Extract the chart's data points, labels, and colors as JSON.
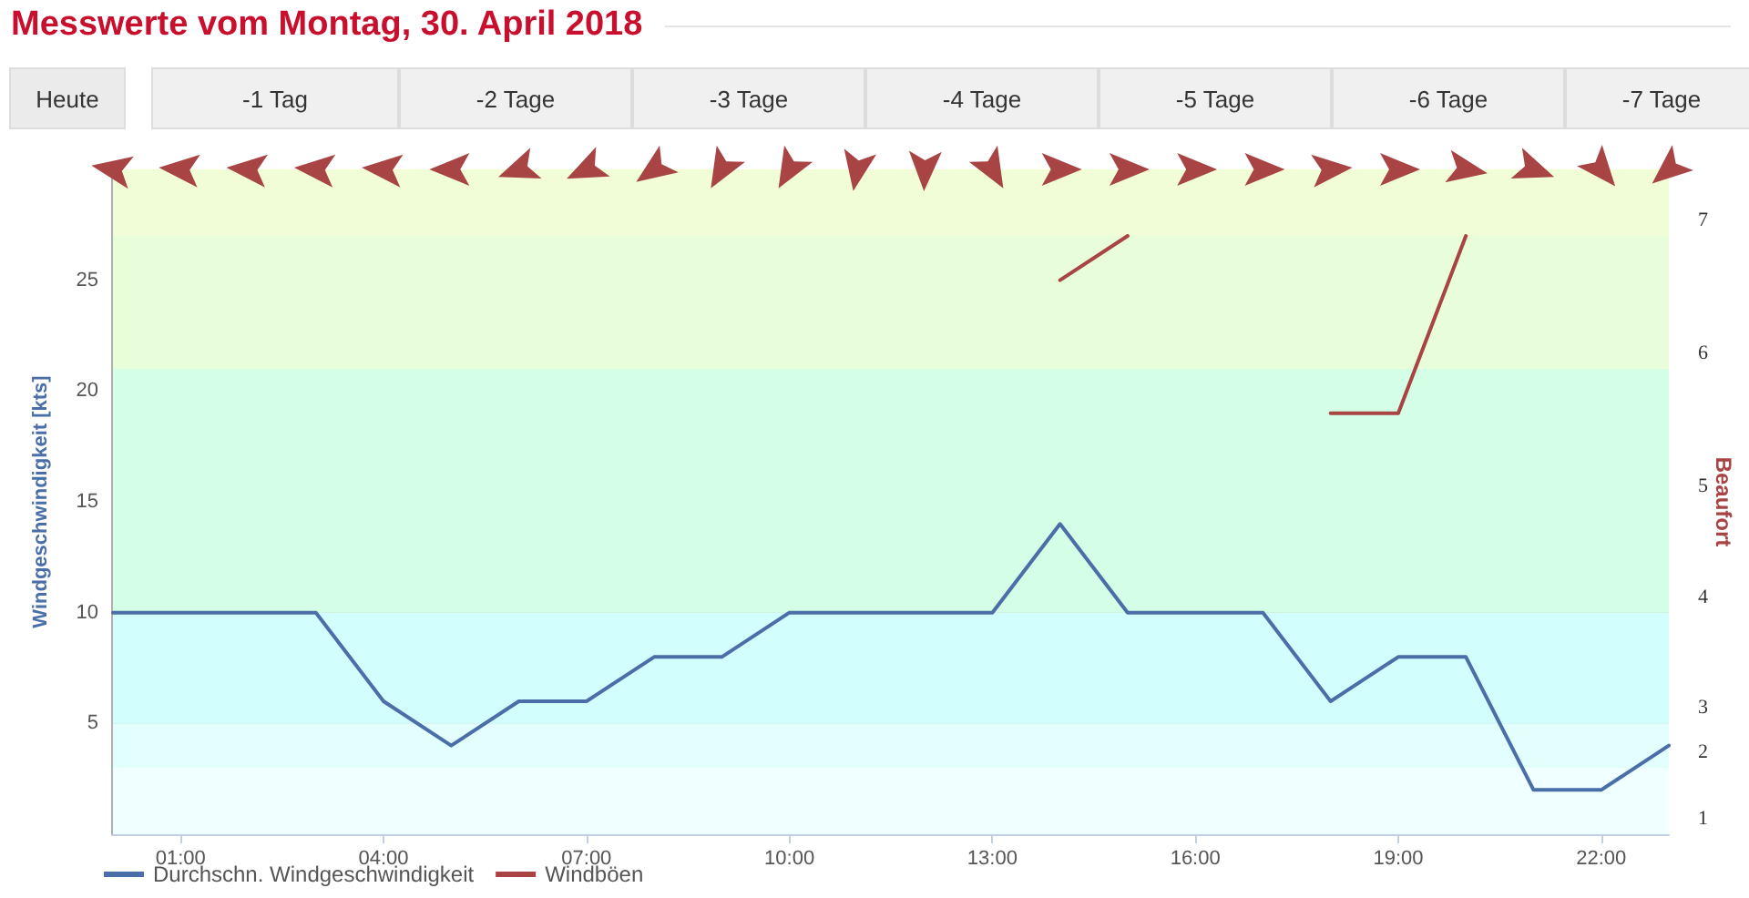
{
  "chart_data": {
    "type": "line",
    "title": "Messwerte vom Montag, 30. April 2018",
    "annotations": [
      "Heute",
      "-1 Tag",
      "-2 Tage",
      "-3 Tage",
      "-4 Tage",
      "-5 Tage",
      "-6 Tage",
      "-7 Tage"
    ],
    "ylabel": "Windgeschwindigkeit [kts]",
    "y2label": "Beaufort",
    "x": [
      0,
      1,
      2,
      3,
      4,
      5,
      6,
      7,
      8,
      9,
      10,
      11,
      12,
      13,
      14,
      15,
      16,
      17,
      18,
      19,
      20,
      21,
      22,
      23
    ],
    "xlim": [
      0,
      23
    ],
    "xticks": [
      {
        "value": 1,
        "label": "01:00"
      },
      {
        "value": 4,
        "label": "04:00"
      },
      {
        "value": 7,
        "label": "07:00"
      },
      {
        "value": 10,
        "label": "10:00"
      },
      {
        "value": 13,
        "label": "13:00"
      },
      {
        "value": 16,
        "label": "16:00"
      },
      {
        "value": 19,
        "label": "19:00"
      },
      {
        "value": 22,
        "label": "22:00"
      }
    ],
    "ylim": [
      0,
      30
    ],
    "yticks": [
      5,
      10,
      15,
      20,
      25
    ],
    "series": [
      {
        "name": "Durchschn. Windgeschwindigkeit",
        "color": "#4a6fa8",
        "values": [
          10,
          10,
          10,
          10,
          6,
          4,
          6,
          6,
          8,
          8,
          10,
          10,
          10,
          10,
          14,
          10,
          10,
          10,
          6,
          8,
          8,
          2,
          2,
          4
        ]
      },
      {
        "name": "Windböen",
        "color": "#a84444",
        "values": [
          null,
          null,
          null,
          null,
          null,
          null,
          null,
          null,
          null,
          null,
          null,
          null,
          null,
          null,
          25,
          27,
          null,
          null,
          19,
          19,
          27,
          null,
          null,
          null
        ]
      }
    ],
    "bands": [
      {
        "axis": "y",
        "from": 0,
        "to": 3,
        "label": "1",
        "color": "#f0ffff"
      },
      {
        "axis": "y",
        "from": 3,
        "to": 5,
        "label": "2",
        "color": "#e2fffe"
      },
      {
        "axis": "y",
        "from": 5,
        "to": 10,
        "label": "3",
        "color": "#d2fffe"
      },
      {
        "axis": "y",
        "from": 10,
        "to": 15,
        "label": "4",
        "color": "#d4fee6"
      },
      {
        "axis": "y",
        "from": 15,
        "to": 21,
        "label": "5",
        "color": "#d4fee6"
      },
      {
        "axis": "y",
        "from": 21,
        "to": 27,
        "label": "6",
        "color": "#e8fdd9"
      },
      {
        "axis": "y",
        "from": 27,
        "to": 30,
        "label": "7",
        "color": "#f1fdd6"
      }
    ],
    "grid": "y",
    "legend": "bottom left",
    "marker": "none",
    "line_style": "solid"
  }
}
